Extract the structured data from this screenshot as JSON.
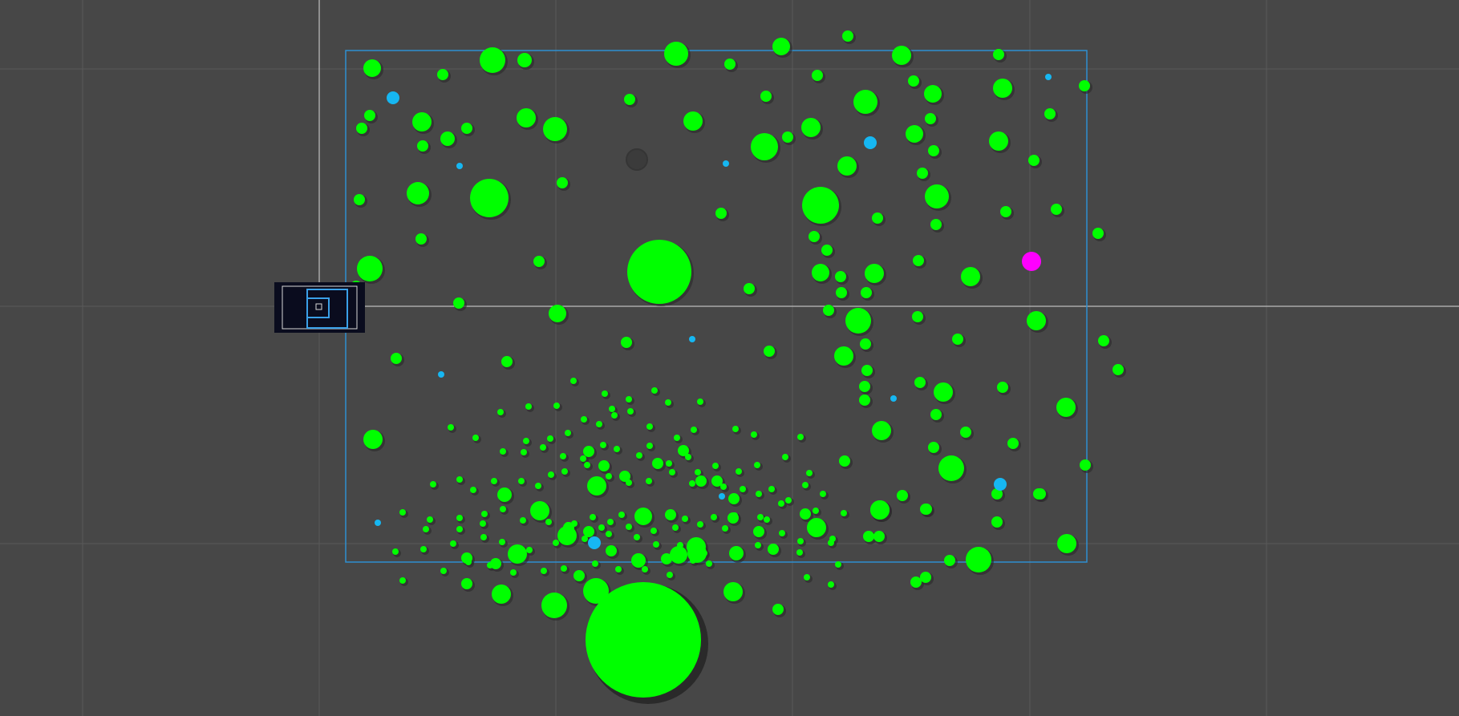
{
  "scene": {
    "view": "scene-editor-2d",
    "colors": {
      "background": "#474747",
      "grid_line": "#5a5a5a",
      "crosshair": "#d8d8d8",
      "bounds_outline": "#2f8fd0",
      "food": "#00ff00",
      "food_shadow": "#2a2a2a",
      "cyan_cell": "#16b7f2",
      "player_cell": "#ff00ff",
      "camera_panel": "#0a0c1e",
      "camera_outline": "#3aa0e8",
      "virus_dark": "#3b3b3b"
    },
    "objects": {
      "world_bounds": "rectangle-outline",
      "camera_gizmo": "camera-icon",
      "crosshair": "axis-crosshair",
      "player_cell": "magenta-circle",
      "food_pellets": "green-circles",
      "cyan_cells": "cyan-circles",
      "dark_object": "dark-circle"
    }
  }
}
